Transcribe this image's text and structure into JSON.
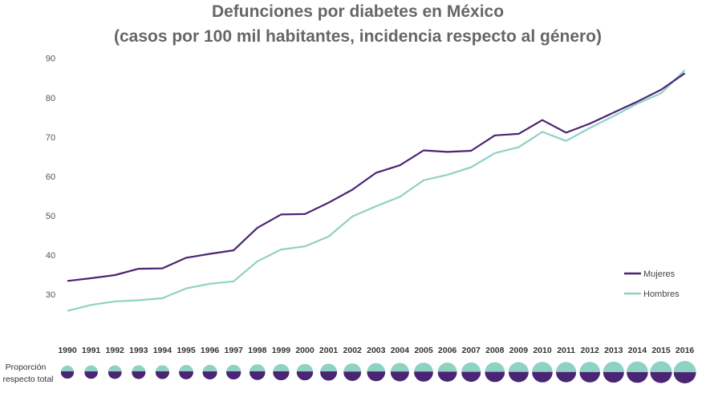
{
  "chart_data": {
    "type": "line",
    "title": "Defunciones por diabetes en México",
    "subtitle": "(casos por 100 mil habitantes, incidencia respecto al género)",
    "xlabel": "",
    "ylabel": "",
    "x": [
      "1990",
      "1991",
      "1992",
      "1993",
      "1994",
      "1995",
      "1996",
      "1997",
      "1998",
      "1999",
      "2000",
      "2001",
      "2002",
      "2003",
      "2004",
      "2005",
      "2006",
      "2007",
      "2008",
      "2009",
      "2010",
      "2011",
      "2012",
      "2013",
      "2014",
      "2015",
      "2016"
    ],
    "ylim": [
      20,
      90
    ],
    "yticks": [
      30,
      40,
      50,
      60,
      70,
      80,
      90
    ],
    "grid": false,
    "legend_position": "bottom-right",
    "series": [
      {
        "name": "Mujeres",
        "color": "#4b2473",
        "values": [
          33.4,
          34.1,
          34.9,
          36.5,
          36.6,
          39.3,
          40.3,
          41.2,
          46.9,
          50.3,
          50.4,
          53.3,
          56.6,
          60.9,
          62.8,
          66.6,
          66.2,
          66.5,
          70.4,
          70.8,
          74.3,
          71.1,
          73.4,
          76.2,
          79.0,
          82.0,
          86.2
        ]
      },
      {
        "name": "Hombres",
        "color": "#8fd1c4",
        "values": [
          25.8,
          27.3,
          28.2,
          28.5,
          29.0,
          31.5,
          32.7,
          33.3,
          38.4,
          41.4,
          42.2,
          44.7,
          49.8,
          52.4,
          54.8,
          59.0,
          60.4,
          62.3,
          65.9,
          67.4,
          71.3,
          69.0,
          72.3,
          75.3,
          78.5,
          81.1,
          87.0
        ]
      }
    ],
    "proportion_row": {
      "label_line1": "Proporción",
      "label_line2": "respecto total"
    }
  }
}
